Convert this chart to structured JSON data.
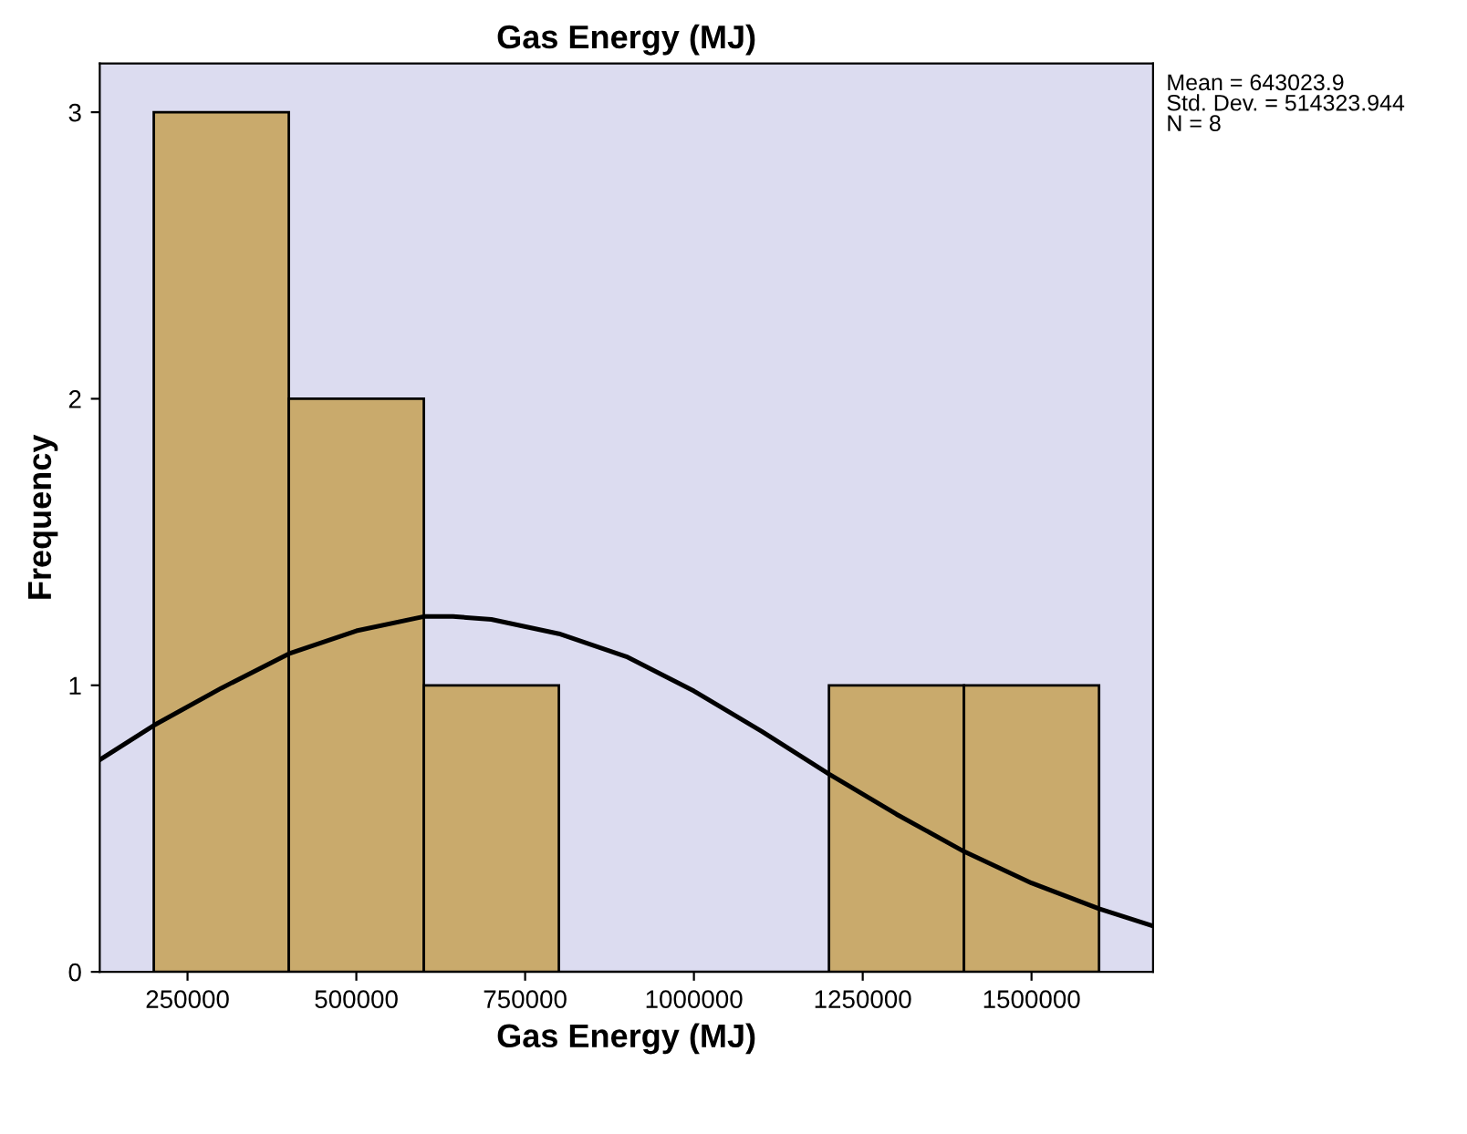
{
  "chart_data": {
    "type": "histogram",
    "title": "Gas Energy (MJ)",
    "xlabel": "Gas Energy (MJ)",
    "ylabel": "Frequency",
    "bins": [
      200000,
      400000,
      600000,
      800000,
      1000000,
      1200000,
      1400000,
      1600000
    ],
    "values": [
      3,
      2,
      1,
      0,
      0,
      1,
      1
    ],
    "color": "#c9aa6c",
    "series": [
      {
        "type": "line",
        "color": "#000000",
        "x": [
          120000,
          200000,
          300000,
          400000,
          500000,
          600000,
          643000,
          700000,
          800000,
          900000,
          1000000,
          1100000,
          1200000,
          1300000,
          1400000,
          1500000,
          1600000,
          1680000
        ],
        "values": [
          0.74,
          0.86,
          0.99,
          1.11,
          1.19,
          1.24,
          1.24,
          1.23,
          1.18,
          1.1,
          0.98,
          0.84,
          0.69,
          0.55,
          0.42,
          0.31,
          0.22,
          0.16
        ]
      }
    ],
    "xlim": [
      120000,
      1680000
    ],
    "ylim": [
      0,
      3.17
    ],
    "xticks": [
      250000,
      500000,
      750000,
      1000000,
      1250000,
      1500000
    ],
    "yticks": [
      0,
      1,
      2,
      3
    ],
    "grid": false,
    "legend": false,
    "marker": "none",
    "line_style": "solid",
    "annotations": [
      "Mean = 643023.9\nStd. Dev. = 514323.944\nN = 8"
    ]
  }
}
